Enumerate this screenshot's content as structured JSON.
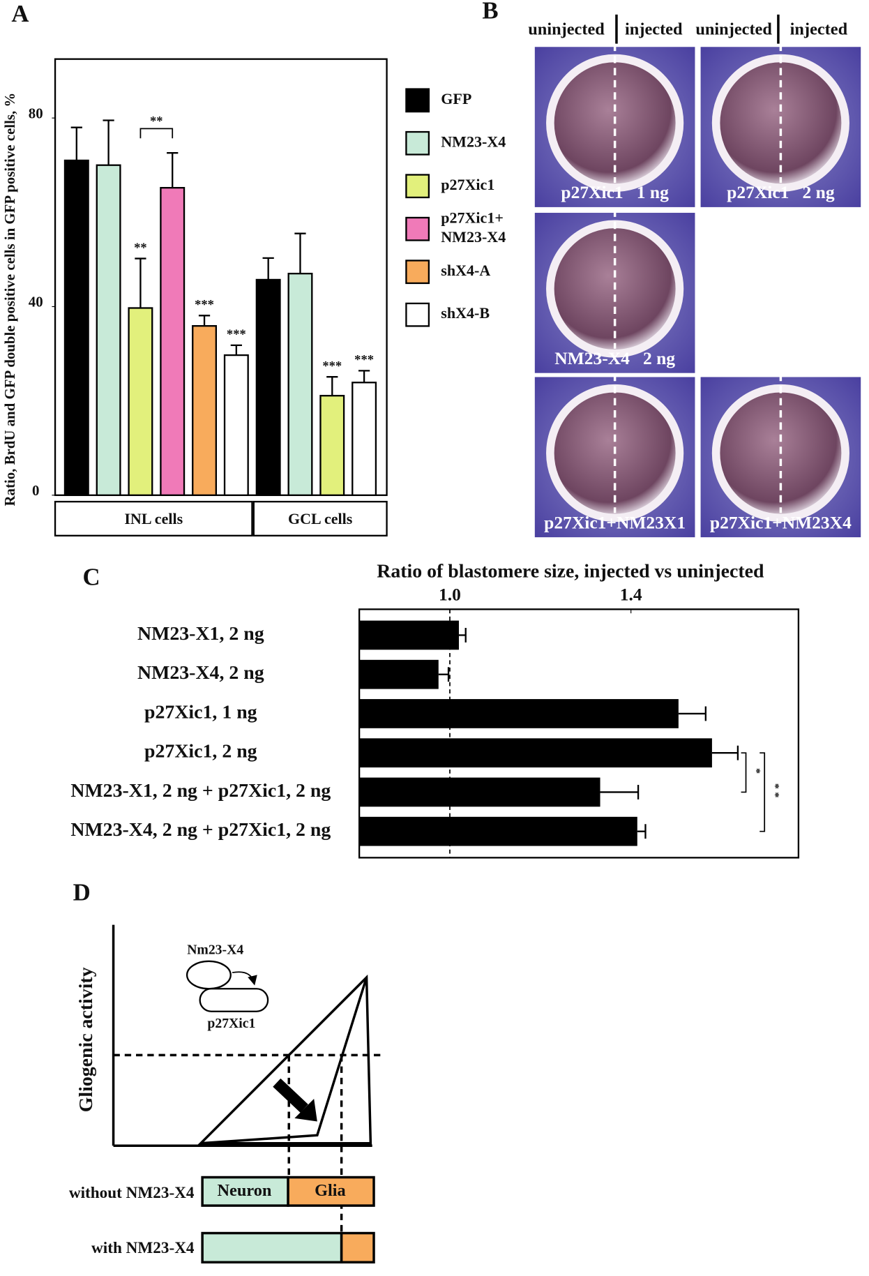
{
  "panel_labels": [
    "A",
    "B",
    "C",
    "D"
  ],
  "chart_data": [
    {
      "type": "bar",
      "y_label": "Ratio, BrdU and GFP double positive cells in GFP positive cells, %",
      "categories": [
        "INL cells",
        "GCL cells"
      ],
      "ylim": [
        0,
        92.5
      ],
      "yticks": [
        0,
        40,
        80
      ],
      "series": [
        {
          "name": "GFP",
          "color": "#000000",
          "values": [
            71,
            45.7
          ],
          "errors": [
            7,
            4.6
          ]
        },
        {
          "name": "NM23-X4",
          "color": "#c8ead8",
          "values": [
            70,
            47
          ],
          "errors": [
            9.5,
            8.5
          ]
        },
        {
          "name": "p27Xic1",
          "color": "#e2f07c",
          "values": [
            39.7,
            21.1
          ],
          "errors": [
            10.5,
            4
          ],
          "significance": [
            "**",
            "***"
          ]
        },
        {
          "name": "p27Xic1+ NM23-X4",
          "color": "#f07ab8",
          "values": [
            65.2,
            null
          ],
          "errors": [
            7.4,
            null
          ]
        },
        {
          "name": "shX4-A",
          "color": "#f8ab5c",
          "values": [
            35.9,
            null
          ],
          "errors": [
            2.2,
            null
          ],
          "significance": [
            "***",
            null
          ]
        },
        {
          "name": "shX4-B",
          "color": "#ffffff",
          "values": [
            29.7,
            23.9
          ],
          "errors": [
            2.1,
            2.5
          ],
          "significance": [
            "***",
            "***"
          ]
        }
      ],
      "bracket": {
        "label": "**",
        "between": [
          "p27Xic1",
          "p27Xic1+ NM23-X4"
        ]
      }
    },
    {
      "type": "hbar",
      "title": "Ratio of blastomere size, injected vs uninjected",
      "categories": [
        "NM23-X1, 2 ng",
        "NM23-X4, 2 ng",
        "p27Xic1, 1 ng",
        "p27Xic1, 2 ng",
        "NM23-X1, 2 ng + p27Xic1, 2 ng",
        "NM23-X4, 2 ng + p27Xic1, 2 ng"
      ],
      "values": [
        1.02,
        0.975,
        1.505,
        1.579,
        1.332,
        1.414
      ],
      "errors": [
        0.015,
        0.022,
        0.06,
        0.057,
        0.084,
        0.018
      ],
      "color": "#000000",
      "xlim": [
        0.8,
        1.77
      ],
      "xticks": [
        {
          "value": 1,
          "label": "1.0"
        },
        {
          "value": 1.4,
          "label": "1.4"
        }
      ],
      "reference_x": 1,
      "brackets": [
        {
          "label": "*",
          "from": "p27Xic1, 2 ng",
          "to": "NM23-X1, 2 ng + p27Xic1, 2 ng"
        },
        {
          "label": "**",
          "from": "p27Xic1, 2 ng",
          "to": "NM23-X4, 2 ng + p27Xic1, 2 ng"
        }
      ]
    }
  ],
  "panel_b": {
    "column_labels": [
      "uninjected",
      "injected",
      "uninjected",
      "injected"
    ],
    "images": [
      {
        "caption": "p27Xic1   1 ng"
      },
      {
        "caption": "p27Xic1   2 ng"
      },
      {
        "caption": "NM23-X4   2 ng"
      },
      {
        "caption": "p27Xic1+NM23X1"
      },
      {
        "caption": "p27Xic1+NM23X4"
      }
    ]
  },
  "panel_d": {
    "y_label": "Gliogenic activity",
    "upstream": "Nm23-X4",
    "downstream": "p27Xic1",
    "rows": [
      {
        "label": "without NM23-X4",
        "segments": [
          "Neuron",
          "Glia"
        ]
      },
      {
        "label": "with NM23-X4"
      }
    ]
  }
}
